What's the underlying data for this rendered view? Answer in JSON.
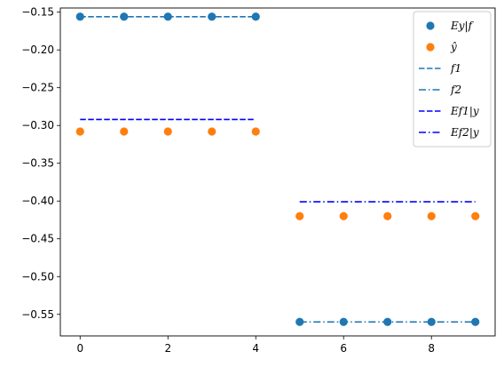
{
  "chart_data": {
    "type": "scatter",
    "title": "",
    "xlabel": "",
    "ylabel": "",
    "xlim": [
      -0.45,
      9.45
    ],
    "ylim": [
      -0.5785,
      -0.1445
    ],
    "x_ticks": [
      0,
      2,
      4,
      6,
      8
    ],
    "x_tick_labels": [
      "0",
      "2",
      "4",
      "6",
      "8"
    ],
    "y_ticks": [
      -0.15,
      -0.2,
      -0.25,
      -0.3,
      -0.35,
      -0.4,
      -0.45,
      -0.5,
      -0.55
    ],
    "y_tick_labels": [
      "−0.15",
      "−0.20",
      "−0.25",
      "−0.30",
      "−0.35",
      "−0.40",
      "−0.45",
      "−0.50",
      "−0.55"
    ],
    "grid": false,
    "legend_position": "top-right",
    "series": [
      {
        "name": "Ey|f",
        "kind": "points",
        "color": "#1f77b4",
        "x": [
          0,
          1,
          2,
          3,
          4,
          5,
          6,
          7,
          8,
          9
        ],
        "y": [
          -0.156,
          -0.156,
          -0.156,
          -0.156,
          -0.156,
          -0.56,
          -0.56,
          -0.56,
          -0.56,
          -0.56
        ]
      },
      {
        "name": "ŷ",
        "kind": "points",
        "color": "#ff7f0e",
        "x": [
          0,
          1,
          2,
          3,
          4,
          5,
          6,
          7,
          8,
          9
        ],
        "y": [
          -0.308,
          -0.308,
          -0.308,
          -0.308,
          -0.308,
          -0.42,
          -0.42,
          -0.42,
          -0.42,
          -0.42
        ]
      },
      {
        "name": "f1",
        "kind": "line",
        "dash": "dashed",
        "color": "#1f77b4",
        "x": [
          0,
          4
        ],
        "y": [
          -0.156,
          -0.156
        ]
      },
      {
        "name": "f2",
        "kind": "line",
        "dash": "dashdot",
        "color": "#1f77b4",
        "x": [
          5,
          9
        ],
        "y": [
          -0.56,
          -0.56
        ]
      },
      {
        "name": "Ef1|y",
        "kind": "line",
        "dash": "dashed",
        "color": "#0000ff",
        "x": [
          0,
          4
        ],
        "y": [
          -0.292,
          -0.292
        ]
      },
      {
        "name": "Ef2|y",
        "kind": "line",
        "dash": "dashdot",
        "color": "#0000ff",
        "x": [
          5,
          9
        ],
        "y": [
          -0.401,
          -0.401
        ]
      }
    ]
  }
}
